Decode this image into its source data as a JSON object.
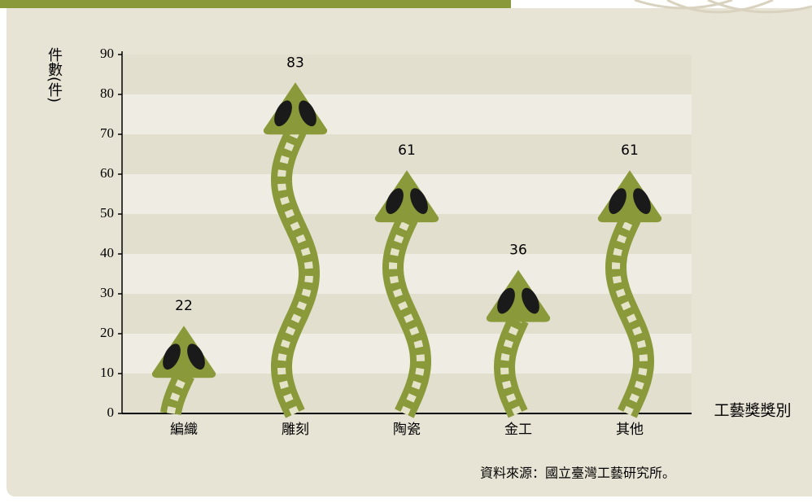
{
  "chart_data": {
    "type": "bar",
    "y_label": "件數(件)",
    "x_label": "工藝獎獎別",
    "source": "資料來源：國立臺灣工藝研究所。",
    "categories": [
      "編織",
      "雕刻",
      "陶瓷",
      "金工",
      "其他"
    ],
    "values": [
      22,
      83,
      61,
      36,
      61
    ],
    "color": "#8a9a3a",
    "ylim": [
      0,
      90
    ],
    "yticks": [
      0,
      10,
      20,
      30,
      40,
      50,
      60,
      70,
      80,
      90
    ],
    "grid": true
  }
}
